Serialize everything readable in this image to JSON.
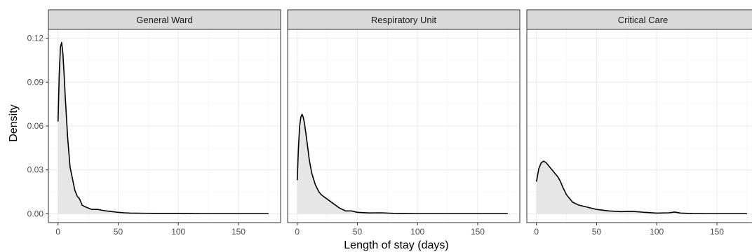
{
  "chart_data": {
    "type": "area",
    "xlabel": "Length of stay (days)",
    "ylabel": "Density",
    "xlim": [
      -8,
      185
    ],
    "ylim": [
      -0.006,
      0.126
    ],
    "x_ticks": [
      0,
      50,
      100,
      150
    ],
    "x_tick_labels": [
      "0",
      "50",
      "100",
      "150"
    ],
    "y_ticks": [
      0.0,
      0.03,
      0.06,
      0.09,
      0.12
    ],
    "y_tick_labels": [
      "0.00",
      "0.03",
      "0.06",
      "0.09",
      "0.12"
    ],
    "grid": true,
    "facets": [
      {
        "label": "General Ward",
        "x": [
          0,
          1,
          2,
          3,
          4,
          5,
          6,
          8,
          10,
          12,
          14,
          16,
          18,
          20,
          22,
          25,
          28,
          30,
          33,
          36,
          40,
          45,
          50,
          55,
          60,
          70,
          80,
          90,
          100,
          110,
          120,
          130,
          140,
          150,
          160,
          170,
          175
        ],
        "y": [
          0.063,
          0.095,
          0.114,
          0.117,
          0.11,
          0.096,
          0.08,
          0.052,
          0.032,
          0.024,
          0.016,
          0.012,
          0.01,
          0.006,
          0.005,
          0.004,
          0.003,
          0.003,
          0.003,
          0.0025,
          0.002,
          0.0015,
          0.001,
          0.0007,
          0.0005,
          0.0004,
          0.0003,
          0.0003,
          0.0003,
          0.0002,
          0.0001,
          0.0001,
          0.0001,
          0.0001,
          0.0001,
          0.0001,
          0.0001
        ]
      },
      {
        "label": "Respiratory Unit",
        "x": [
          0,
          1,
          2,
          3,
          4,
          5,
          6,
          8,
          10,
          12,
          15,
          18,
          20,
          25,
          30,
          35,
          40,
          45,
          50,
          55,
          60,
          70,
          80,
          90,
          100,
          120,
          140,
          160,
          175
        ],
        "y": [
          0.023,
          0.045,
          0.06,
          0.066,
          0.068,
          0.066,
          0.062,
          0.05,
          0.037,
          0.028,
          0.02,
          0.015,
          0.013,
          0.01,
          0.007,
          0.004,
          0.002,
          0.002,
          0.001,
          0.0008,
          0.0006,
          0.0007,
          0.0003,
          0.0002,
          0.0001,
          0.0001,
          0.0001,
          0.0001,
          0.0001
        ]
      },
      {
        "label": "Critical Care",
        "x": [
          0,
          2,
          4,
          6,
          8,
          10,
          12,
          15,
          18,
          20,
          22,
          25,
          28,
          30,
          35,
          40,
          45,
          50,
          60,
          70,
          80,
          90,
          100,
          110,
          115,
          120,
          130,
          140,
          160,
          175
        ],
        "y": [
          0.022,
          0.031,
          0.035,
          0.036,
          0.035,
          0.033,
          0.031,
          0.028,
          0.025,
          0.022,
          0.018,
          0.013,
          0.01,
          0.008,
          0.006,
          0.005,
          0.004,
          0.003,
          0.002,
          0.0015,
          0.0017,
          0.001,
          0.0005,
          0.0007,
          0.0012,
          0.0005,
          0.0002,
          0.0001,
          0.0001,
          0.0001
        ]
      }
    ]
  }
}
